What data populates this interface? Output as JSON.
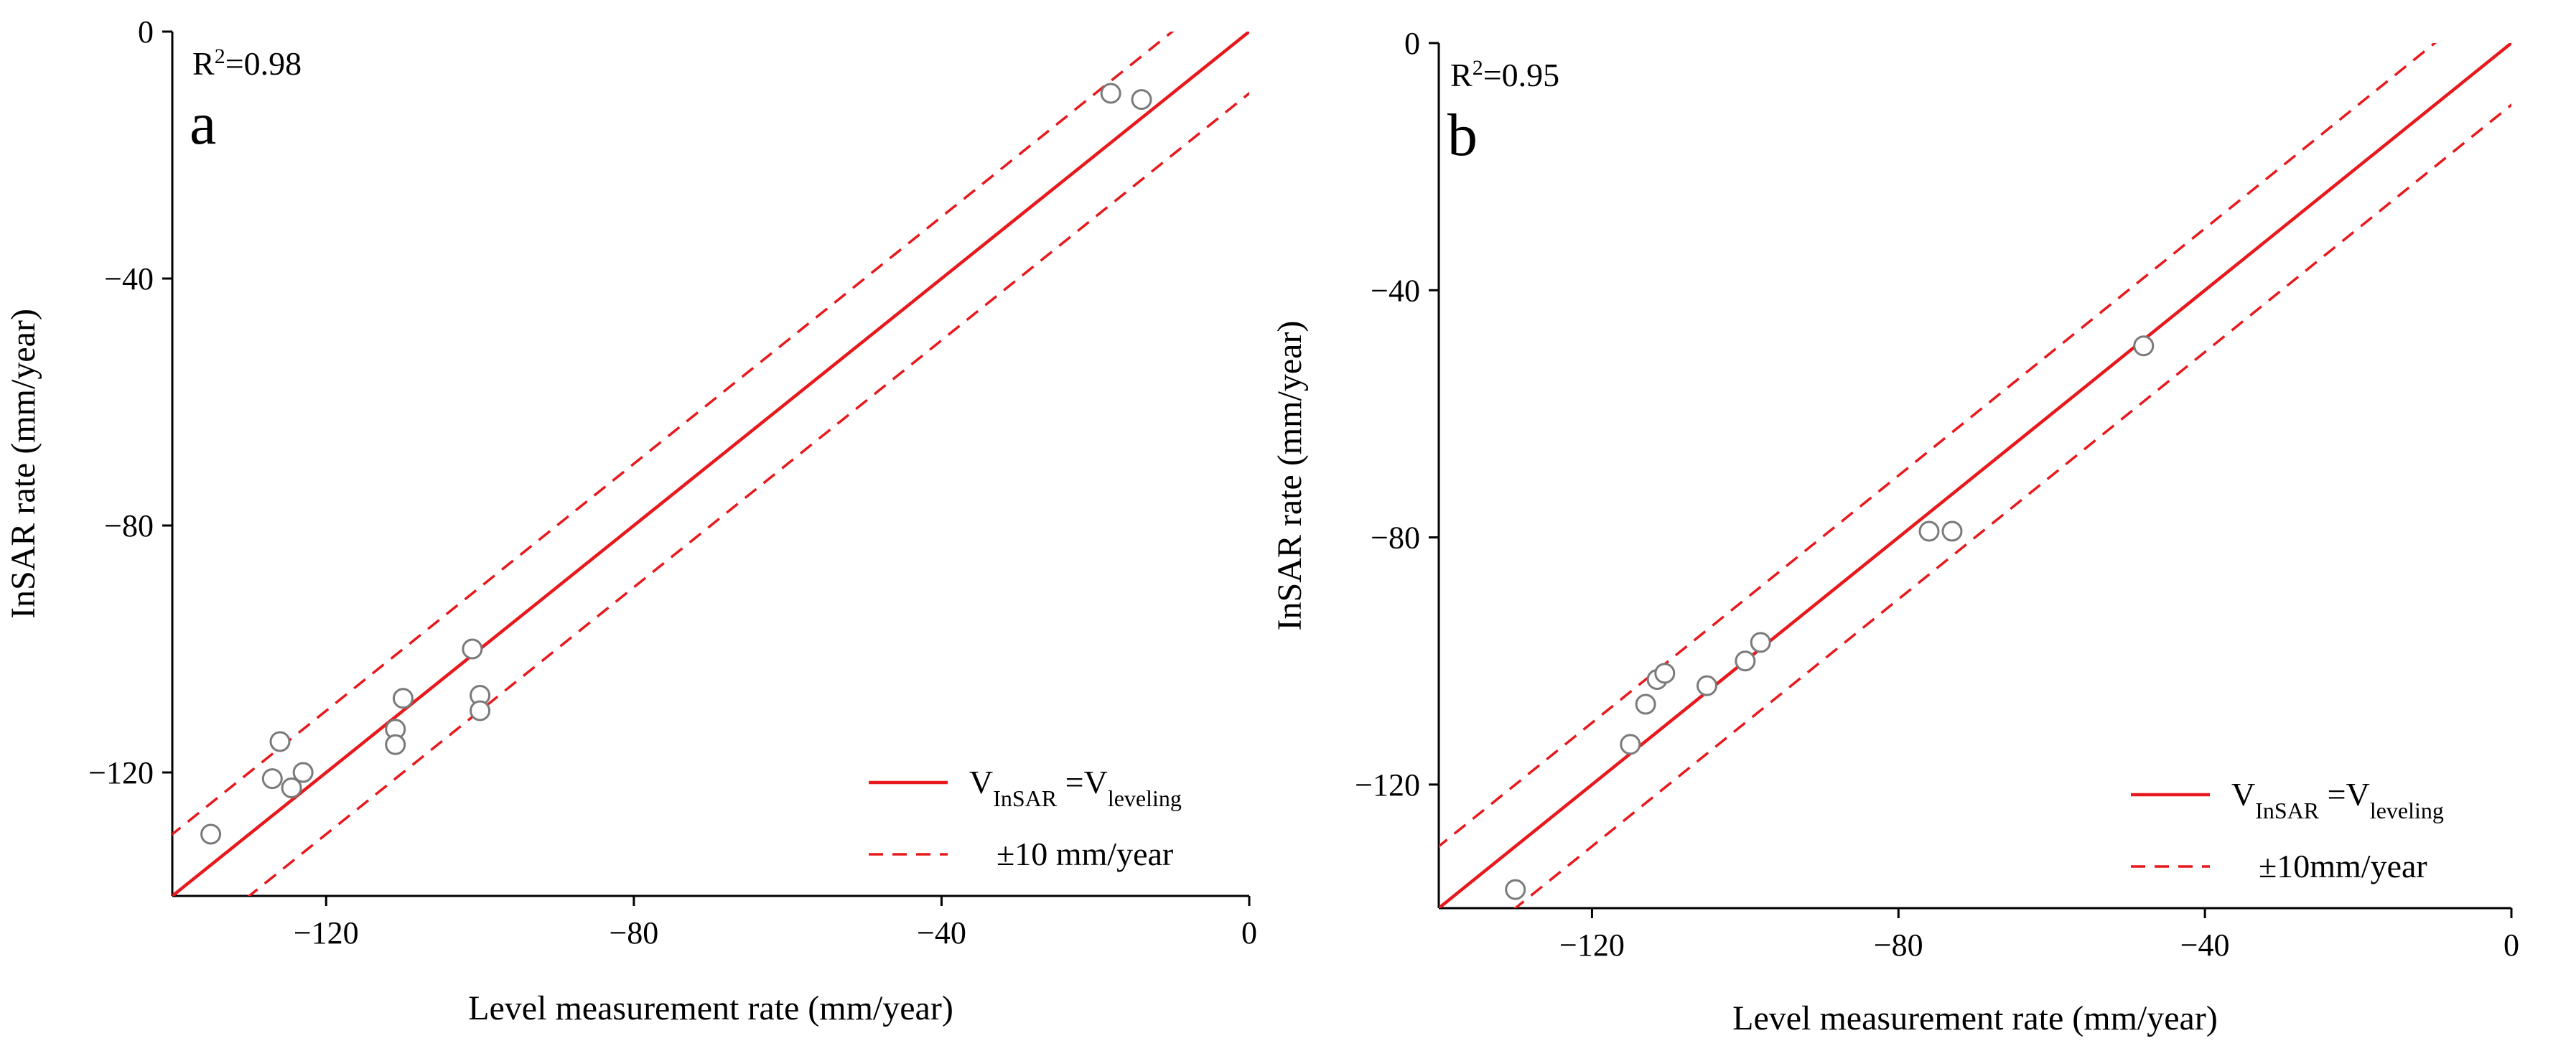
{
  "chart_data": [
    {
      "type": "scatter",
      "panel_label": "a",
      "r2_label": "R",
      "r2_sup": "2",
      "r2_value": "=0.98",
      "xlabel": "Level measurement rate (mm/year)",
      "ylabel": "InSAR rate (mm/year)",
      "xlim": [
        -140,
        0
      ],
      "ylim": [
        -140,
        0
      ],
      "xticks": [
        -120,
        -80,
        -40,
        0
      ],
      "yticks": [
        -120,
        -80,
        -40,
        0
      ],
      "grid": false,
      "legend_position": "bottom-right",
      "legend": {
        "solid": {
          "v": "V",
          "sub1": "InSAR",
          "eq": " =V",
          "sub2": "leveling"
        },
        "dashed": "±10 mm/year"
      },
      "lines": {
        "one_to_one": "y = x",
        "offset": 10,
        "color": "#e8191d"
      },
      "points": [
        {
          "x": -135,
          "y": -130
        },
        {
          "x": -127,
          "y": -121
        },
        {
          "x": -126,
          "y": -115
        },
        {
          "x": -124.5,
          "y": -122.5
        },
        {
          "x": -123,
          "y": -120
        },
        {
          "x": -111,
          "y": -113
        },
        {
          "x": -111,
          "y": -115.5
        },
        {
          "x": -110,
          "y": -108
        },
        {
          "x": -101,
          "y": -100
        },
        {
          "x": -100,
          "y": -107.5
        },
        {
          "x": -100,
          "y": -110
        },
        {
          "x": -18,
          "y": -10
        },
        {
          "x": -14,
          "y": -11
        }
      ]
    },
    {
      "type": "scatter",
      "panel_label": "b",
      "r2_label": "R",
      "r2_sup": "2",
      "r2_value": "=0.95",
      "xlabel": "Level measurement  rate (mm/year)",
      "ylabel": "InSAR rate (mm/year)",
      "xlim": [
        -140,
        0
      ],
      "ylim": [
        -140,
        0
      ],
      "xticks": [
        -120,
        -80,
        -40,
        0
      ],
      "yticks": [
        -120,
        -80,
        -40,
        0
      ],
      "grid": false,
      "legend_position": "bottom-right",
      "legend": {
        "solid": {
          "v": "V",
          "sub1": "InSAR",
          "eq": " =V",
          "sub2": "leveling"
        },
        "dashed": "±10mm/year"
      },
      "lines": {
        "one_to_one": "y = x",
        "offset": 10,
        "color": "#e8191d"
      },
      "points": [
        {
          "x": -130,
          "y": -137
        },
        {
          "x": -115,
          "y": -113.5
        },
        {
          "x": -113,
          "y": -107
        },
        {
          "x": -111.5,
          "y": -103
        },
        {
          "x": -110.5,
          "y": -102
        },
        {
          "x": -105,
          "y": -104
        },
        {
          "x": -100,
          "y": -100
        },
        {
          "x": -98,
          "y": -97
        },
        {
          "x": -76,
          "y": -79
        },
        {
          "x": -73,
          "y": -79
        },
        {
          "x": -48,
          "y": -49
        }
      ]
    }
  ]
}
